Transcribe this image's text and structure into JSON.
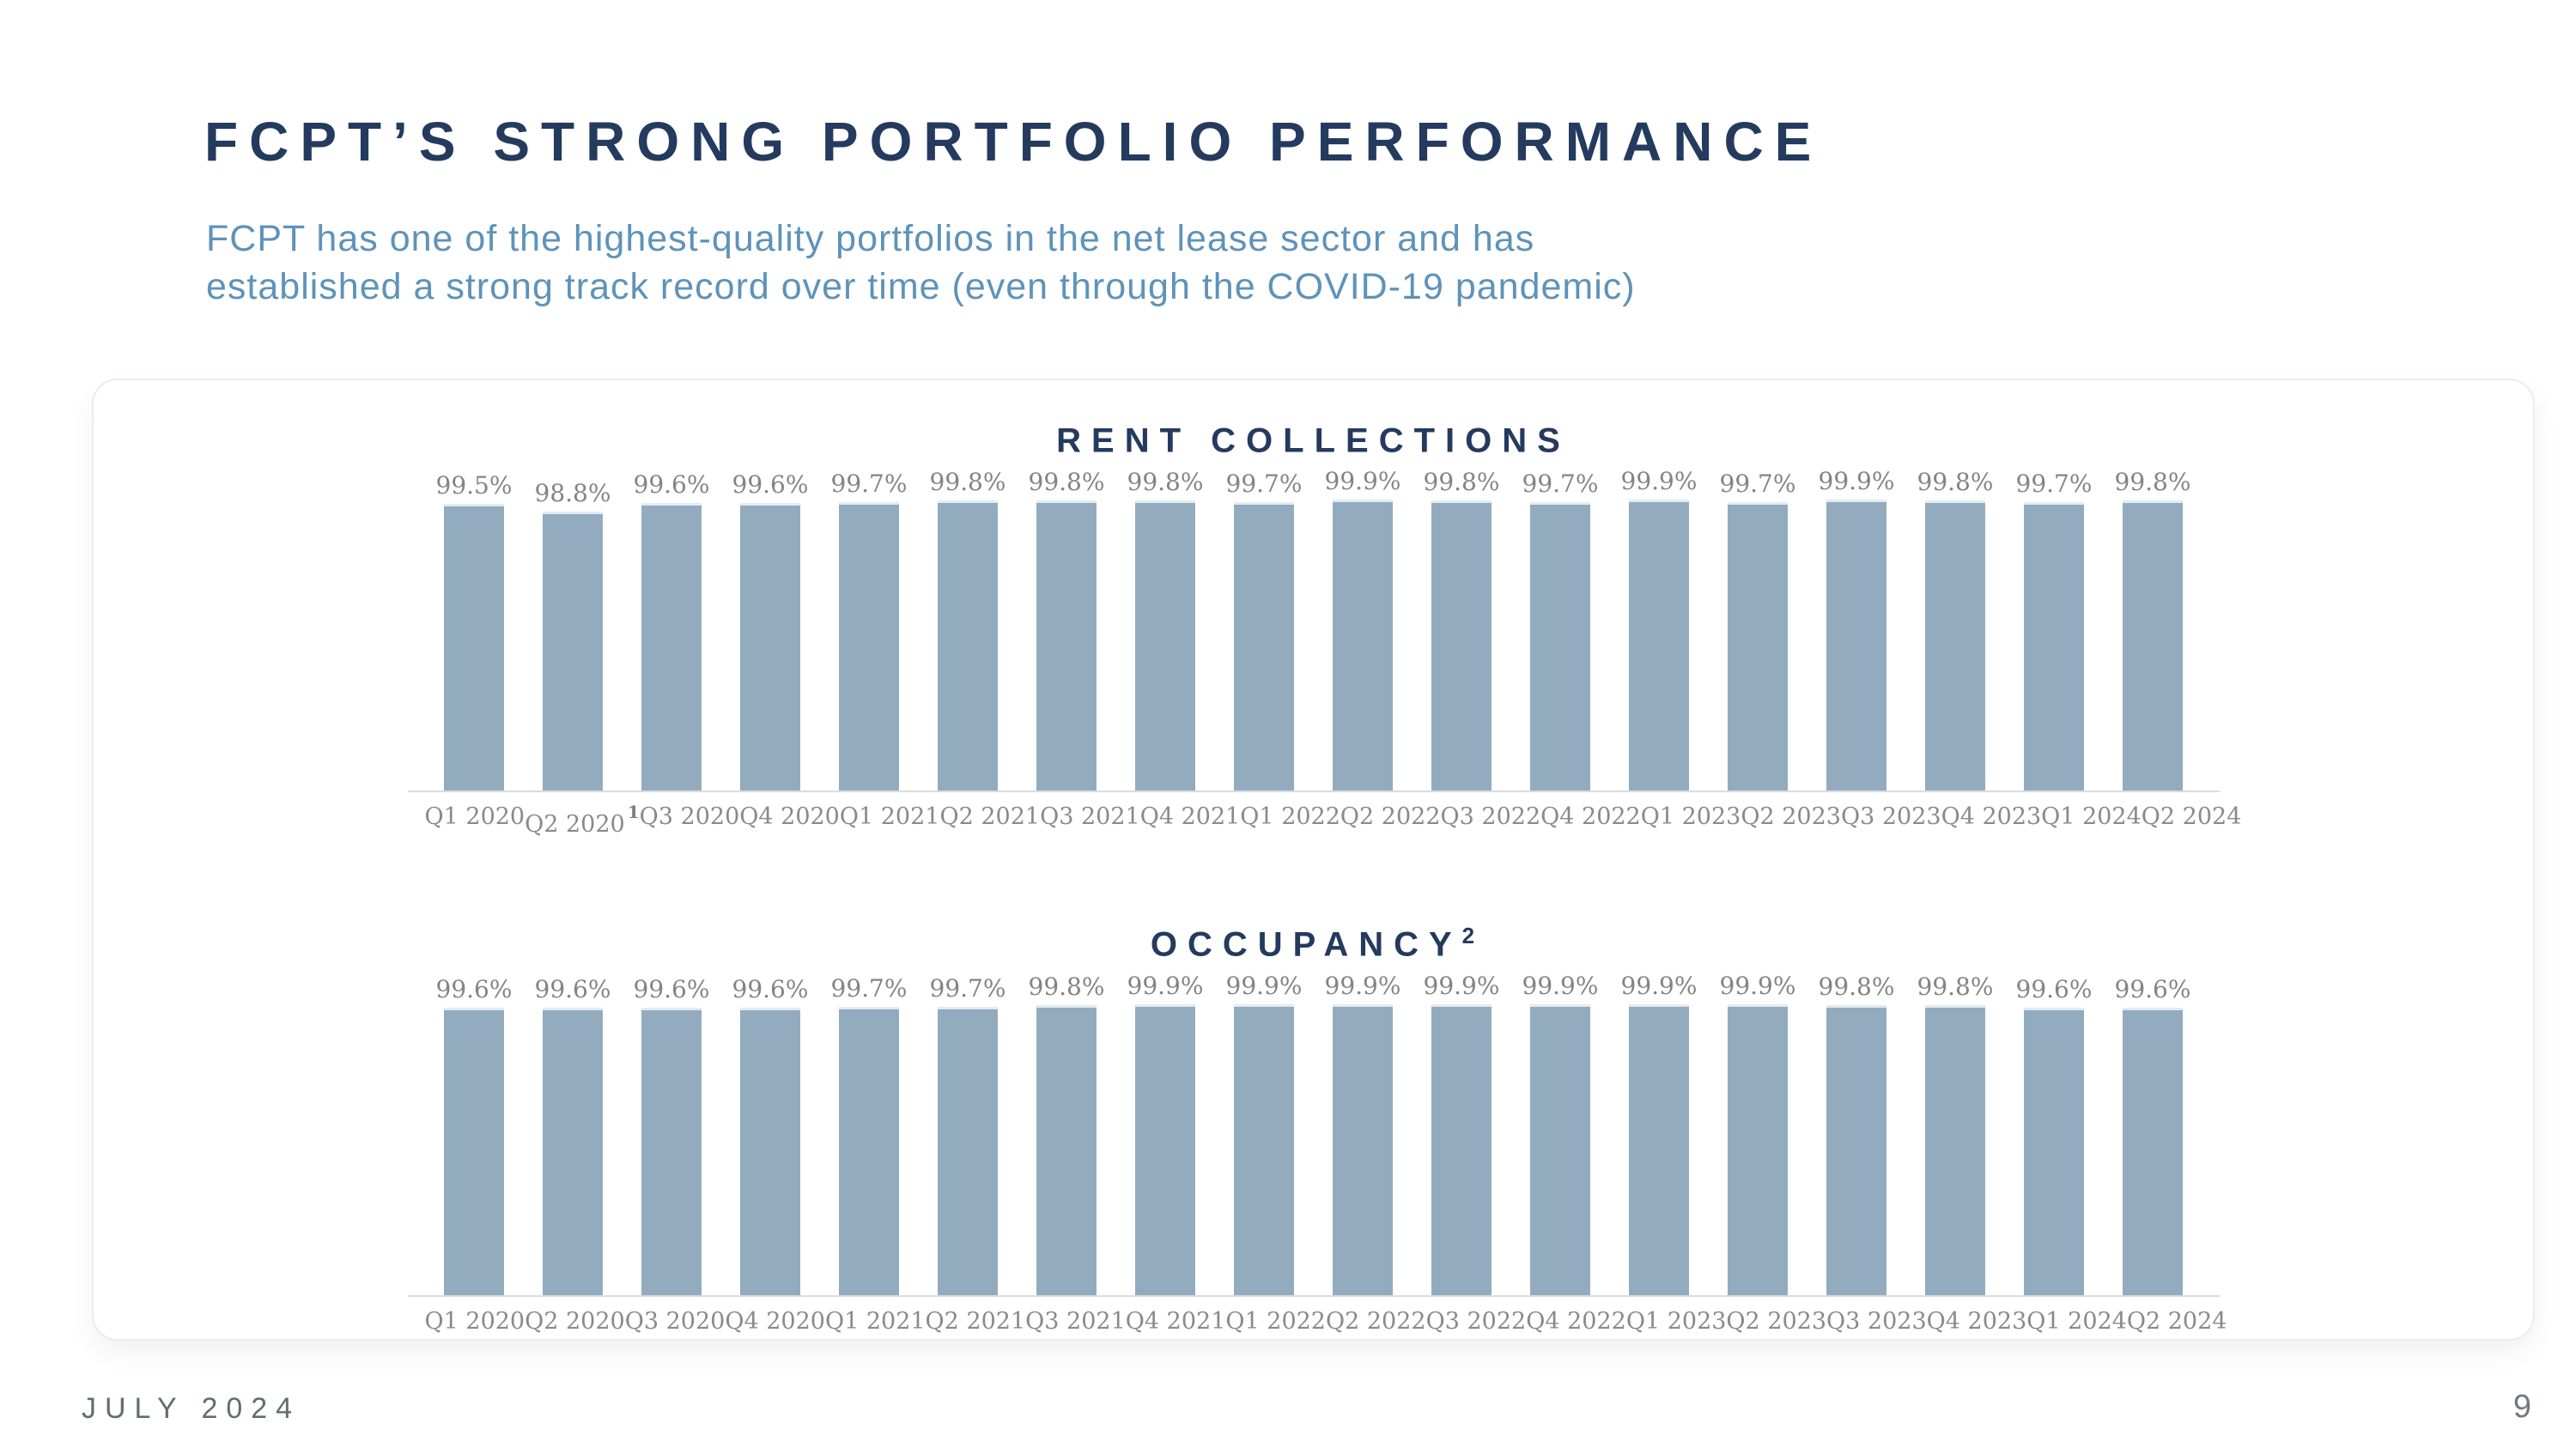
{
  "slide": {
    "title": "FCPT’S STRONG PORTFOLIO PERFORMANCE",
    "subtitle_line1": "FCPT has one of the highest-quality portfolios in the net lease sector and has",
    "subtitle_line2": "established a strong track record over time (even through the COVID-19 pandemic)",
    "footer_date": "JULY 2024",
    "page_number": "9"
  },
  "colors": {
    "title_navy": "#243a5e",
    "subtitle_blue": "#5e93ba",
    "bar_fill": "#93abbf",
    "label_gray": "#848484",
    "baseline_gray": "#dcdcdc",
    "footer_gray": "#5f6e6e"
  },
  "chart_data": [
    {
      "type": "bar",
      "title": "RENT COLLECTIONS",
      "title_sup": "",
      "categories": [
        "Q1 2020",
        "Q2 2020",
        "Q3 2020",
        "Q4 2020",
        "Q1 2021",
        "Q2 2021",
        "Q3 2021",
        "Q4 2021",
        "Q1 2022",
        "Q2 2022",
        "Q3 2022",
        "Q4 2022",
        "Q1 2023",
        "Q2 2023",
        "Q3 2023",
        "Q4 2023",
        "Q1 2024",
        "Q2 2024"
      ],
      "values": [
        99.5,
        98.8,
        99.6,
        99.6,
        99.7,
        99.8,
        99.8,
        99.8,
        99.7,
        99.9,
        99.8,
        99.7,
        99.9,
        99.7,
        99.9,
        99.8,
        99.7,
        99.8
      ],
      "value_labels": [
        "99.5%",
        "98.8%",
        "99.6%",
        "99.6%",
        "99.7%",
        "99.8%",
        "99.8%",
        "99.8%",
        "99.7%",
        "99.9%",
        "99.8%",
        "99.7%",
        "99.9%",
        "99.7%",
        "99.9%",
        "99.8%",
        "99.7%",
        "99.8%"
      ],
      "footnote_index": 1,
      "footnote_marker": "1",
      "ylim": [
        72,
        100
      ],
      "grid": false,
      "legend": "none"
    },
    {
      "type": "bar",
      "title": "OCCUPANCY",
      "title_sup": "2",
      "categories": [
        "Q1 2020",
        "Q2 2020",
        "Q3 2020",
        "Q4 2020",
        "Q1 2021",
        "Q2 2021",
        "Q3 2021",
        "Q4 2021",
        "Q1 2022",
        "Q2 2022",
        "Q3 2022",
        "Q4 2022",
        "Q1 2023",
        "Q2 2023",
        "Q3 2023",
        "Q4 2023",
        "Q1 2024",
        "Q2 2024"
      ],
      "values": [
        99.6,
        99.6,
        99.6,
        99.6,
        99.7,
        99.7,
        99.8,
        99.9,
        99.9,
        99.9,
        99.9,
        99.9,
        99.9,
        99.9,
        99.8,
        99.8,
        99.6,
        99.6
      ],
      "value_labels": [
        "99.6%",
        "99.6%",
        "99.6%",
        "99.6%",
        "99.7%",
        "99.7%",
        "99.8%",
        "99.9%",
        "99.9%",
        "99.9%",
        "99.9%",
        "99.9%",
        "99.9%",
        "99.9%",
        "99.8%",
        "99.8%",
        "99.6%",
        "99.6%"
      ],
      "footnote_index": -1,
      "footnote_marker": "",
      "ylim": [
        72,
        100
      ],
      "grid": false,
      "legend": "none"
    }
  ]
}
